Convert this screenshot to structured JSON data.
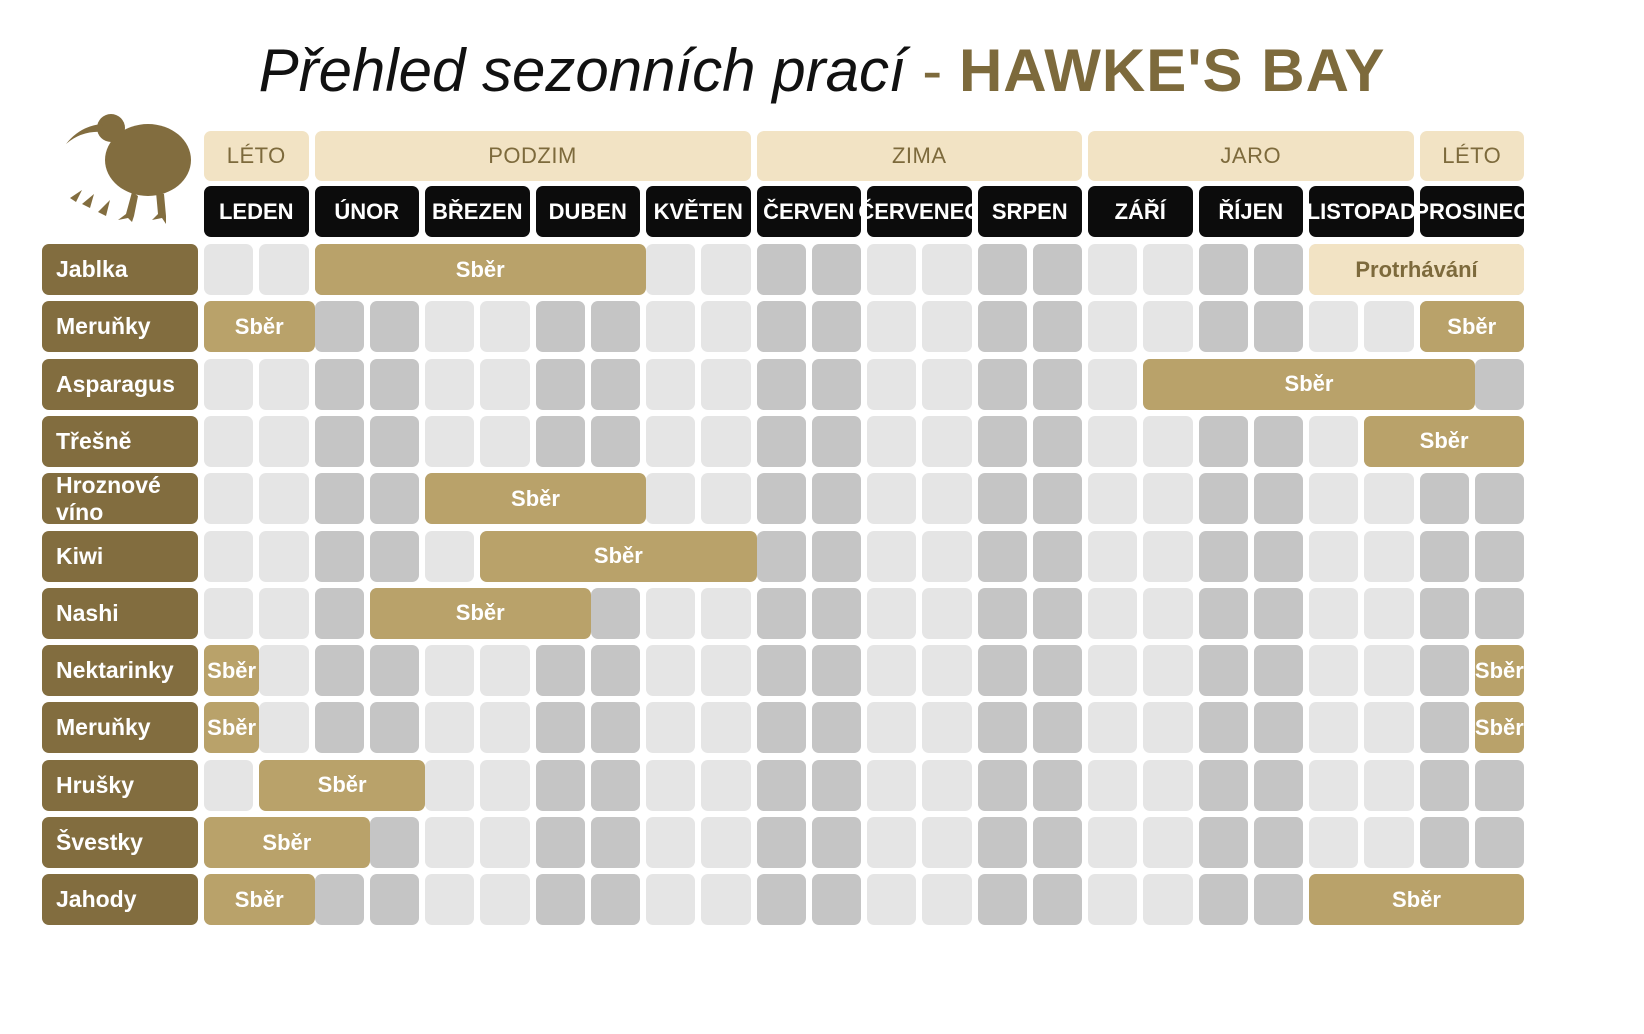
{
  "header": {
    "title_main": "Přehled sezonních prací",
    "title_separator": "-",
    "title_accent": "HAWKE'S BAY"
  },
  "logo": {
    "icon": "kiwi-bird-icon",
    "color": "#826d3f"
  },
  "colors": {
    "accent": "#7d6a3c",
    "crop_label": "#826d3f",
    "harvest": "#b9a26a",
    "season_bg": "#f2e3c4",
    "month_bg": "#0c0c0c",
    "cell_light": "#e5e5e5",
    "cell_dark": "#c5c5c5"
  },
  "seasons": [
    {
      "label": "LÉTO",
      "months": [
        0,
        0
      ]
    },
    {
      "label": "PODZIM",
      "months": [
        1,
        4
      ]
    },
    {
      "label": "ZIMA",
      "months": [
        5,
        7
      ]
    },
    {
      "label": "JARO",
      "months": [
        8,
        10
      ]
    },
    {
      "label": "LÉTO",
      "months": [
        11,
        11
      ]
    }
  ],
  "months": [
    "LEDEN",
    "ÚNOR",
    "BŘEZEN",
    "DUBEN",
    "KVĚTEN",
    "ČERVEN",
    "ČERVENEC",
    "SRPEN",
    "ZÁŘÍ",
    "ŘÍJEN",
    "LISTOPAD",
    "PROSINEC"
  ],
  "crops": [
    {
      "name": "Jablka",
      "tasks": [
        {
          "label": "Sběr",
          "type": "harvest",
          "start": 1.0,
          "end": 4.0
        },
        {
          "label": "Protrhávání",
          "type": "thinning",
          "start": 10.0,
          "end": 12.0
        }
      ]
    },
    {
      "name": "Meruňky",
      "tasks": [
        {
          "label": "Sběr",
          "type": "harvest",
          "start": 0.0,
          "end": 1.0
        },
        {
          "label": "Sběr",
          "type": "harvest",
          "start": 11.0,
          "end": 12.0
        }
      ]
    },
    {
      "name": "Asparagus",
      "tasks": [
        {
          "label": "Sběr",
          "type": "harvest",
          "start": 8.5,
          "end": 11.5
        }
      ]
    },
    {
      "name": "Třešně",
      "tasks": [
        {
          "label": "Sběr",
          "type": "harvest",
          "start": 10.5,
          "end": 12.0
        }
      ]
    },
    {
      "name": "Hroznové víno",
      "tasks": [
        {
          "label": "Sběr",
          "type": "harvest",
          "start": 2.0,
          "end": 4.0
        }
      ]
    },
    {
      "name": "Kiwi",
      "tasks": [
        {
          "label": "Sběr",
          "type": "harvest",
          "start": 2.5,
          "end": 5.0
        }
      ]
    },
    {
      "name": "Nashi",
      "tasks": [
        {
          "label": "Sběr",
          "type": "harvest",
          "start": 1.5,
          "end": 3.5
        }
      ]
    },
    {
      "name": "Nektarinky",
      "tasks": [
        {
          "label": "Sběr",
          "type": "harvest",
          "start": 0.0,
          "end": 0.5
        },
        {
          "label": "Sběr",
          "type": "harvest",
          "start": 11.5,
          "end": 12.0
        }
      ]
    },
    {
      "name": "Meruňky",
      "tasks": [
        {
          "label": "Sběr",
          "type": "harvest",
          "start": 0.0,
          "end": 0.5
        },
        {
          "label": "Sběr",
          "type": "harvest",
          "start": 11.5,
          "end": 12.0
        }
      ]
    },
    {
      "name": "Hrušky",
      "tasks": [
        {
          "label": "Sběr",
          "type": "harvest",
          "start": 0.5,
          "end": 2.0
        }
      ]
    },
    {
      "name": "Švestky",
      "tasks": [
        {
          "label": "Sběr",
          "type": "harvest",
          "start": 0.0,
          "end": 1.5
        }
      ]
    },
    {
      "name": "Jahody",
      "tasks": [
        {
          "label": "Sběr",
          "type": "harvest",
          "start": 0.0,
          "end": 1.0
        },
        {
          "label": "Sběr",
          "type": "harvest",
          "start": 10.0,
          "end": 12.0
        }
      ]
    }
  ]
}
